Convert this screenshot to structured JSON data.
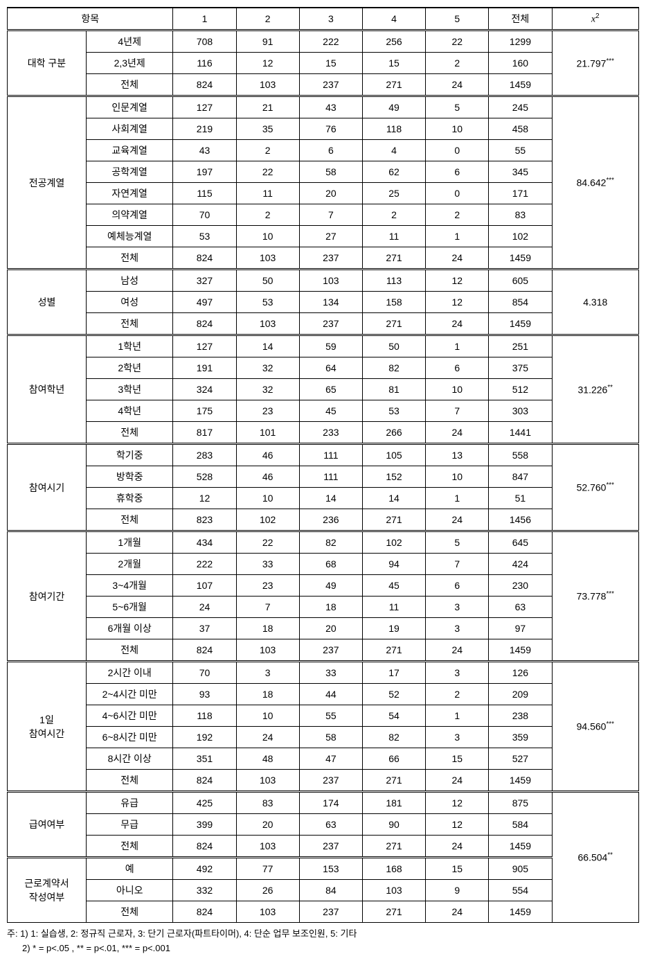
{
  "header": {
    "cat_label": "항목",
    "c1": "1",
    "c2": "2",
    "c3": "3",
    "c4": "4",
    "c5": "5",
    "total": "전체",
    "chi": "x",
    "chi_sup": "2"
  },
  "groups": [
    {
      "label": "대학 구분",
      "chi": "21.797",
      "chi_sig": "***",
      "rows": [
        {
          "label": "4년제",
          "v": [
            "708",
            "91",
            "222",
            "256",
            "22",
            "1299"
          ]
        },
        {
          "label": "2,3년제",
          "v": [
            "116",
            "12",
            "15",
            "15",
            "2",
            "160"
          ]
        },
        {
          "label": "전체",
          "v": [
            "824",
            "103",
            "237",
            "271",
            "24",
            "1459"
          ]
        }
      ]
    },
    {
      "label": "전공계열",
      "chi": "84.642",
      "chi_sig": "***",
      "rows": [
        {
          "label": "인문계열",
          "v": [
            "127",
            "21",
            "43",
            "49",
            "5",
            "245"
          ]
        },
        {
          "label": "사회계열",
          "v": [
            "219",
            "35",
            "76",
            "118",
            "10",
            "458"
          ]
        },
        {
          "label": "교육계열",
          "v": [
            "43",
            "2",
            "6",
            "4",
            "0",
            "55"
          ]
        },
        {
          "label": "공학계열",
          "v": [
            "197",
            "22",
            "58",
            "62",
            "6",
            "345"
          ]
        },
        {
          "label": "자연계열",
          "v": [
            "115",
            "11",
            "20",
            "25",
            "0",
            "171"
          ]
        },
        {
          "label": "의약계열",
          "v": [
            "70",
            "2",
            "7",
            "2",
            "2",
            "83"
          ]
        },
        {
          "label": "예체능계열",
          "v": [
            "53",
            "10",
            "27",
            "11",
            "1",
            "102"
          ]
        },
        {
          "label": "전체",
          "v": [
            "824",
            "103",
            "237",
            "271",
            "24",
            "1459"
          ]
        }
      ]
    },
    {
      "label": "성별",
      "chi": "4.318",
      "chi_sig": "",
      "rows": [
        {
          "label": "남성",
          "v": [
            "327",
            "50",
            "103",
            "113",
            "12",
            "605"
          ]
        },
        {
          "label": "여성",
          "v": [
            "497",
            "53",
            "134",
            "158",
            "12",
            "854"
          ]
        },
        {
          "label": "전체",
          "v": [
            "824",
            "103",
            "237",
            "271",
            "24",
            "1459"
          ]
        }
      ]
    },
    {
      "label": "참여학년",
      "chi": "31.226",
      "chi_sig": "**",
      "rows": [
        {
          "label": "1학년",
          "v": [
            "127",
            "14",
            "59",
            "50",
            "1",
            "251"
          ]
        },
        {
          "label": "2학년",
          "v": [
            "191",
            "32",
            "64",
            "82",
            "6",
            "375"
          ]
        },
        {
          "label": "3학년",
          "v": [
            "324",
            "32",
            "65",
            "81",
            "10",
            "512"
          ]
        },
        {
          "label": "4학년",
          "v": [
            "175",
            "23",
            "45",
            "53",
            "7",
            "303"
          ]
        },
        {
          "label": "전체",
          "v": [
            "817",
            "101",
            "233",
            "266",
            "24",
            "1441"
          ]
        }
      ]
    },
    {
      "label": "참여시기",
      "chi": "52.760",
      "chi_sig": "***",
      "rows": [
        {
          "label": "학기중",
          "v": [
            "283",
            "46",
            "111",
            "105",
            "13",
            "558"
          ]
        },
        {
          "label": "방학중",
          "v": [
            "528",
            "46",
            "111",
            "152",
            "10",
            "847"
          ]
        },
        {
          "label": "휴학중",
          "v": [
            "12",
            "10",
            "14",
            "14",
            "1",
            "51"
          ]
        },
        {
          "label": "전체",
          "v": [
            "823",
            "102",
            "236",
            "271",
            "24",
            "1456"
          ]
        }
      ]
    },
    {
      "label": "참여기간",
      "chi": "73.778",
      "chi_sig": "***",
      "rows": [
        {
          "label": "1개월",
          "v": [
            "434",
            "22",
            "82",
            "102",
            "5",
            "645"
          ]
        },
        {
          "label": "2개월",
          "v": [
            "222",
            "33",
            "68",
            "94",
            "7",
            "424"
          ]
        },
        {
          "label": "3~4개월",
          "v": [
            "107",
            "23",
            "49",
            "45",
            "6",
            "230"
          ]
        },
        {
          "label": "5~6개월",
          "v": [
            "24",
            "7",
            "18",
            "11",
            "3",
            "63"
          ]
        },
        {
          "label": "6개월 이상",
          "v": [
            "37",
            "18",
            "20",
            "19",
            "3",
            "97"
          ]
        },
        {
          "label": "전체",
          "v": [
            "824",
            "103",
            "237",
            "271",
            "24",
            "1459"
          ]
        }
      ]
    },
    {
      "label": "1일\n참여시간",
      "chi": "94.560",
      "chi_sig": "***",
      "rows": [
        {
          "label": "2시간 이내",
          "v": [
            "70",
            "3",
            "33",
            "17",
            "3",
            "126"
          ]
        },
        {
          "label": "2~4시간 미만",
          "v": [
            "93",
            "18",
            "44",
            "52",
            "2",
            "209"
          ]
        },
        {
          "label": "4~6시간 미만",
          "v": [
            "118",
            "10",
            "55",
            "54",
            "1",
            "238"
          ]
        },
        {
          "label": "6~8시간 미만",
          "v": [
            "192",
            "24",
            "58",
            "82",
            "3",
            "359"
          ]
        },
        {
          "label": "8시간 이상",
          "v": [
            "351",
            "48",
            "47",
            "66",
            "15",
            "527"
          ]
        },
        {
          "label": "전체",
          "v": [
            "824",
            "103",
            "237",
            "271",
            "24",
            "1459"
          ]
        }
      ]
    },
    {
      "label": "급여여부",
      "chi": "",
      "chi_sig": "",
      "rows": [
        {
          "label": "유급",
          "v": [
            "425",
            "83",
            "174",
            "181",
            "12",
            "875"
          ]
        },
        {
          "label": "무급",
          "v": [
            "399",
            "20",
            "63",
            "90",
            "12",
            "584"
          ]
        },
        {
          "label": "전체",
          "v": [
            "824",
            "103",
            "237",
            "271",
            "24",
            "1459"
          ]
        }
      ],
      "merged_chi": {
        "value": "66.504",
        "sig": "**",
        "span": 6
      }
    },
    {
      "label": "근로계약서\n작성여부",
      "chi": null,
      "chi_sig": null,
      "rows": [
        {
          "label": "예",
          "v": [
            "492",
            "77",
            "153",
            "168",
            "15",
            "905"
          ]
        },
        {
          "label": "아니오",
          "v": [
            "332",
            "26",
            "84",
            "103",
            "9",
            "554"
          ]
        },
        {
          "label": "전체",
          "v": [
            "824",
            "103",
            "237",
            "271",
            "24",
            "1459"
          ]
        }
      ],
      "chi_merged_above": true
    }
  ],
  "footnote": {
    "line1": "주: 1) 1: 실습생, 2: 정규직 근로자, 3: 단기 근로자(파트타이머), 4: 단순 업무 보조인원, 5: 기타",
    "line2": "2) * = p<.05 , ** = p<.01, *** = p<.001"
  },
  "style": {
    "border_color": "#000000",
    "background": "#ffffff",
    "font_size": 14,
    "footnote_font_size": 13
  }
}
